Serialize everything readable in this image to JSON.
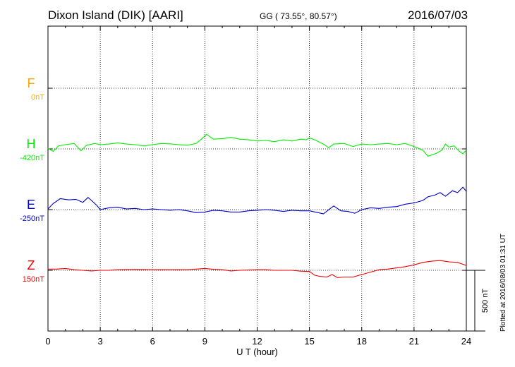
{
  "header": {
    "title": "Dixon Island (DIK)  [AARI]",
    "coords": "GG ( 73.55°,  80.57°)",
    "date": "2016/07/03"
  },
  "side_note": "Plotted at 2016/08/03 01:31  UT",
  "chart_data": {
    "type": "line",
    "xlabel": "U T (hour)",
    "xlim": [
      0,
      24
    ],
    "xticks": [
      0,
      3,
      6,
      9,
      12,
      15,
      18,
      21,
      24
    ],
    "scale_bar": {
      "label": "500 nT",
      "value_nT": 500
    },
    "series": [
      {
        "name": "F",
        "baseline_label": "0nT",
        "color": "#ffa500",
        "points": []
      },
      {
        "name": "H",
        "baseline_label": "-420nT",
        "color": "#00ee00",
        "points": [
          [
            0,
            -415
          ],
          [
            0.3,
            -440
          ],
          [
            0.6,
            -395
          ],
          [
            1,
            -385
          ],
          [
            1.5,
            -375
          ],
          [
            1.9,
            -435
          ],
          [
            2.2,
            -390
          ],
          [
            2.7,
            -375
          ],
          [
            3,
            -385
          ],
          [
            3.5,
            -380
          ],
          [
            4,
            -370
          ],
          [
            4.5,
            -380
          ],
          [
            5,
            -385
          ],
          [
            5.5,
            -395
          ],
          [
            6,
            -385
          ],
          [
            6.5,
            -375
          ],
          [
            7,
            -378
          ],
          [
            7.5,
            -385
          ],
          [
            8,
            -390
          ],
          [
            8.5,
            -375
          ],
          [
            8.8,
            -340
          ],
          [
            9.1,
            -300
          ],
          [
            9.5,
            -340
          ],
          [
            10,
            -335
          ],
          [
            10.5,
            -325
          ],
          [
            11,
            -340
          ],
          [
            11.5,
            -345
          ],
          [
            12,
            -355
          ],
          [
            12.5,
            -350
          ],
          [
            13,
            -360
          ],
          [
            13.5,
            -345
          ],
          [
            14,
            -355
          ],
          [
            14.5,
            -340
          ],
          [
            14.8,
            -345
          ],
          [
            15,
            -330
          ],
          [
            15.3,
            -345
          ],
          [
            15.8,
            -380
          ],
          [
            16.1,
            -410
          ],
          [
            16.4,
            -380
          ],
          [
            17,
            -375
          ],
          [
            17.5,
            -400
          ],
          [
            18,
            -380
          ],
          [
            18.5,
            -385
          ],
          [
            19,
            -380
          ],
          [
            19.5,
            -375
          ],
          [
            20,
            -385
          ],
          [
            20.5,
            -375
          ],
          [
            21,
            -400
          ],
          [
            21.5,
            -430
          ],
          [
            21.8,
            -480
          ],
          [
            22,
            -470
          ],
          [
            22.3,
            -455
          ],
          [
            22.6,
            -430
          ],
          [
            22.8,
            -380
          ],
          [
            23,
            -405
          ],
          [
            23.3,
            -395
          ],
          [
            23.6,
            -440
          ],
          [
            23.8,
            -460
          ],
          [
            24,
            -430
          ]
        ]
      },
      {
        "name": "E",
        "baseline_label": "-250nT",
        "color": "#0000cc",
        "points": [
          [
            0,
            -245
          ],
          [
            0.3,
            -200
          ],
          [
            0.7,
            -160
          ],
          [
            1.2,
            -170
          ],
          [
            1.6,
            -165
          ],
          [
            2,
            -190
          ],
          [
            2.3,
            -150
          ],
          [
            2.5,
            -175
          ],
          [
            2.8,
            -215
          ],
          [
            3,
            -250
          ],
          [
            3.5,
            -235
          ],
          [
            4,
            -230
          ],
          [
            4.5,
            -245
          ],
          [
            5,
            -240
          ],
          [
            5.5,
            -250
          ],
          [
            6,
            -245
          ],
          [
            6.5,
            -250
          ],
          [
            7,
            -255
          ],
          [
            7.5,
            -250
          ],
          [
            8,
            -260
          ],
          [
            8.5,
            -275
          ],
          [
            9,
            -270
          ],
          [
            9.5,
            -255
          ],
          [
            10,
            -260
          ],
          [
            10.5,
            -270
          ],
          [
            11,
            -270
          ],
          [
            11.5,
            -260
          ],
          [
            12,
            -255
          ],
          [
            12.5,
            -250
          ],
          [
            13,
            -255
          ],
          [
            13.5,
            -265
          ],
          [
            14,
            -255
          ],
          [
            14.5,
            -260
          ],
          [
            15,
            -260
          ],
          [
            15.5,
            -275
          ],
          [
            15.8,
            -285
          ],
          [
            16.2,
            -240
          ],
          [
            16.4,
            -220
          ],
          [
            16.8,
            -260
          ],
          [
            17.2,
            -265
          ],
          [
            17.6,
            -280
          ],
          [
            18,
            -250
          ],
          [
            18.5,
            -235
          ],
          [
            19,
            -240
          ],
          [
            19.5,
            -230
          ],
          [
            20,
            -225
          ],
          [
            20.5,
            -205
          ],
          [
            21,
            -195
          ],
          [
            21.5,
            -175
          ],
          [
            21.8,
            -145
          ],
          [
            22.2,
            -130
          ],
          [
            22.5,
            -110
          ],
          [
            22.8,
            -140
          ],
          [
            23.2,
            -95
          ],
          [
            23.5,
            -110
          ],
          [
            23.8,
            -65
          ],
          [
            24,
            -100
          ]
        ]
      },
      {
        "name": "Z",
        "baseline_label": "150nT",
        "color": "#ee0000",
        "points": [
          [
            0,
            160
          ],
          [
            0.5,
            160
          ],
          [
            1,
            165
          ],
          [
            1.5,
            155
          ],
          [
            2,
            150
          ],
          [
            2.5,
            145
          ],
          [
            3,
            150
          ],
          [
            3.5,
            150
          ],
          [
            4,
            155
          ],
          [
            5,
            157
          ],
          [
            6,
            155
          ],
          [
            7,
            155
          ],
          [
            8,
            155
          ],
          [
            8.5,
            160
          ],
          [
            9,
            165
          ],
          [
            9.5,
            158
          ],
          [
            10,
            155
          ],
          [
            10.5,
            145
          ],
          [
            11,
            150
          ],
          [
            12,
            155
          ],
          [
            12.5,
            155
          ],
          [
            13,
            150
          ],
          [
            14,
            150
          ],
          [
            14.5,
            143
          ],
          [
            15,
            140
          ],
          [
            15.3,
            110
          ],
          [
            15.6,
            100
          ],
          [
            16,
            95
          ],
          [
            16.3,
            115
          ],
          [
            16.6,
            90
          ],
          [
            17,
            95
          ],
          [
            17.5,
            95
          ],
          [
            18,
            115
          ],
          [
            18.5,
            135
          ],
          [
            19,
            155
          ],
          [
            19.5,
            160
          ],
          [
            20,
            170
          ],
          [
            20.5,
            180
          ],
          [
            21,
            195
          ],
          [
            21.5,
            215
          ],
          [
            22,
            225
          ],
          [
            22.5,
            230
          ],
          [
            23,
            220
          ],
          [
            23.5,
            215
          ],
          [
            24,
            190
          ]
        ]
      }
    ]
  }
}
